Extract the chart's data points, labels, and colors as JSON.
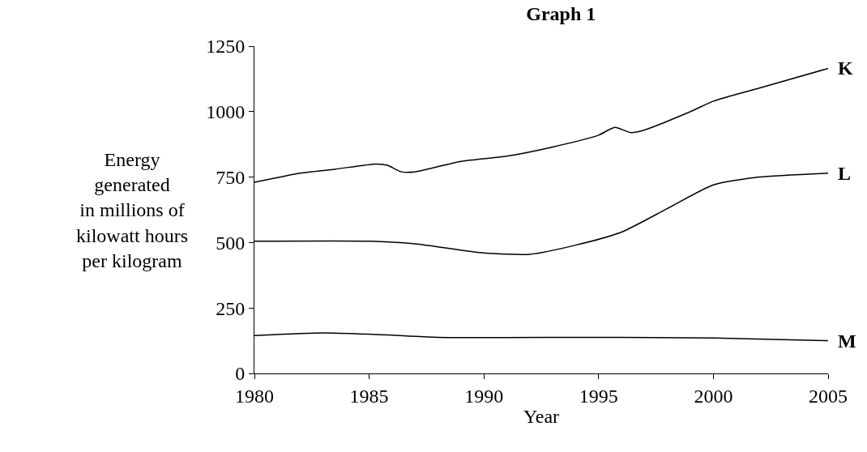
{
  "chart_data": {
    "type": "line",
    "title": "Graph 1",
    "xlabel": "Year",
    "ylabel": "Energy\ngenerated\nin millions of\nkilowatt hours\nper kilogram",
    "xlim": [
      1980,
      2005
    ],
    "xticks": [
      1980,
      1985,
      1990,
      1995,
      2000,
      2005
    ],
    "ylim": [
      0,
      1250
    ],
    "yticks": [
      0,
      250,
      500,
      750,
      1000,
      1250
    ],
    "legend": false,
    "marker": "none",
    "line_style": "solid",
    "series": [
      {
        "name": "K",
        "color": "#000000",
        "x": [
          1980,
          1982,
          1983.5,
          1985.3,
          1985.8,
          1986.4,
          1987,
          1989,
          1991,
          1993,
          1995,
          1995.7,
          1996.4,
          1997,
          1999,
          2000,
          2002,
          2005
        ],
        "values": [
          730,
          765,
          780,
          800,
          795,
          770,
          770,
          810,
          830,
          865,
          910,
          940,
          920,
          930,
          1000,
          1040,
          1090,
          1165
        ]
      },
      {
        "name": "L",
        "color": "#000000",
        "x": [
          1980,
          1985,
          1987,
          1990,
          1992,
          1994,
          1996,
          1998,
          2000,
          2002,
          2005
        ],
        "values": [
          505,
          505,
          495,
          460,
          455,
          490,
          540,
          630,
          720,
          750,
          765
        ]
      },
      {
        "name": "M",
        "color": "#000000",
        "x": [
          1980,
          1983,
          1985,
          1988,
          1995,
          2000,
          2005
        ],
        "values": [
          145,
          155,
          150,
          138,
          138,
          135,
          125
        ]
      }
    ]
  }
}
